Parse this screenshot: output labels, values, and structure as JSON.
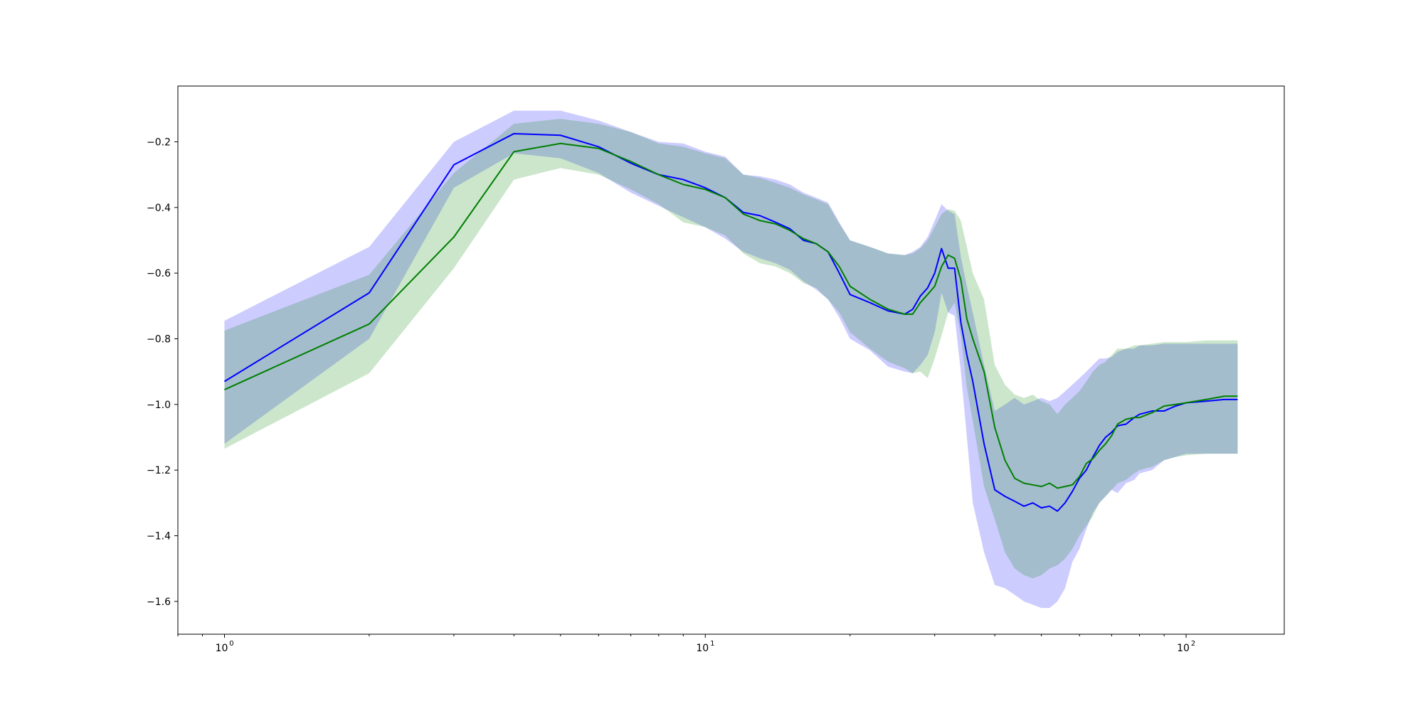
{
  "chart_data": {
    "type": "line",
    "title": "",
    "xlabel": "",
    "ylabel": "",
    "xscale": "log",
    "xlim": [
      0.8,
      160
    ],
    "ylim": [
      -1.7,
      -0.03
    ],
    "grid": false,
    "legend": "none",
    "x_tick_labels": [
      {
        "value": 1,
        "base": "10",
        "exp": "0"
      },
      {
        "value": 10,
        "base": "10",
        "exp": "1"
      },
      {
        "value": 100,
        "base": "10",
        "exp": "2"
      }
    ],
    "y_ticks": [
      -0.2,
      -0.4,
      -0.6,
      -0.8,
      -1.0,
      -1.2,
      -1.4,
      -1.6
    ],
    "y_tick_labels": [
      "−0.2",
      "−0.4",
      "−0.6",
      "−0.8",
      "−1.0",
      "−1.2",
      "−1.4",
      "−1.6"
    ],
    "series": [
      {
        "color": "#0000ff",
        "band_color": "#0000ff",
        "band_opacity": 0.2,
        "x": [
          1,
          2,
          3,
          4,
          5,
          6,
          7,
          8,
          9,
          10,
          11,
          12,
          13,
          14,
          15,
          16,
          17,
          18,
          19,
          20,
          22,
          24,
          26,
          27,
          28,
          29,
          30,
          31,
          32,
          33,
          34,
          35,
          36,
          38,
          40,
          42,
          44,
          46,
          48,
          50,
          52,
          54,
          56,
          58,
          60,
          62,
          64,
          66,
          68,
          70,
          72,
          75,
          78,
          80,
          85,
          90,
          95,
          100,
          110,
          120,
          128
        ],
        "mean": [
          -0.93,
          -0.66,
          -0.27,
          -0.175,
          -0.18,
          -0.215,
          -0.265,
          -0.3,
          -0.315,
          -0.34,
          -0.37,
          -0.415,
          -0.425,
          -0.445,
          -0.465,
          -0.5,
          -0.51,
          -0.535,
          -0.6,
          -0.665,
          -0.69,
          -0.715,
          -0.725,
          -0.71,
          -0.67,
          -0.645,
          -0.6,
          -0.525,
          -0.585,
          -0.585,
          -0.75,
          -0.85,
          -0.93,
          -1.12,
          -1.26,
          -1.28,
          -1.295,
          -1.31,
          -1.3,
          -1.315,
          -1.31,
          -1.325,
          -1.3,
          -1.265,
          -1.225,
          -1.2,
          -1.16,
          -1.125,
          -1.1,
          -1.085,
          -1.065,
          -1.06,
          -1.04,
          -1.03,
          -1.02,
          -1.02,
          -1.005,
          -0.995,
          -0.99,
          -0.985,
          -0.985
        ],
        "upper": [
          -0.745,
          -0.52,
          -0.2,
          -0.105,
          -0.105,
          -0.135,
          -0.17,
          -0.2,
          -0.205,
          -0.23,
          -0.245,
          -0.3,
          -0.305,
          -0.315,
          -0.33,
          -0.355,
          -0.37,
          -0.385,
          -0.445,
          -0.5,
          -0.52,
          -0.54,
          -0.545,
          -0.535,
          -0.52,
          -0.49,
          -0.44,
          -0.39,
          -0.41,
          -0.42,
          -0.55,
          -0.64,
          -0.72,
          -0.88,
          -1.02,
          -1.0,
          -0.98,
          -1.0,
          -0.99,
          -0.98,
          -0.99,
          -0.98,
          -0.96,
          -0.94,
          -0.92,
          -0.9,
          -0.88,
          -0.86,
          -0.86,
          -0.855,
          -0.84,
          -0.83,
          -0.83,
          -0.82,
          -0.82,
          -0.815,
          -0.815,
          -0.815,
          -0.815,
          -0.815,
          -0.815
        ],
        "lower": [
          -1.12,
          -0.8,
          -0.34,
          -0.235,
          -0.25,
          -0.295,
          -0.355,
          -0.395,
          -0.43,
          -0.46,
          -0.495,
          -0.535,
          -0.555,
          -0.57,
          -0.59,
          -0.625,
          -0.65,
          -0.68,
          -0.735,
          -0.8,
          -0.835,
          -0.885,
          -0.9,
          -0.905,
          -0.88,
          -0.85,
          -0.78,
          -0.66,
          -0.72,
          -0.73,
          -0.9,
          -1.1,
          -1.3,
          -1.45,
          -1.55,
          -1.56,
          -1.58,
          -1.6,
          -1.61,
          -1.62,
          -1.62,
          -1.6,
          -1.56,
          -1.48,
          -1.44,
          -1.38,
          -1.33,
          -1.3,
          -1.28,
          -1.26,
          -1.27,
          -1.24,
          -1.23,
          -1.21,
          -1.2,
          -1.17,
          -1.16,
          -1.15,
          -1.15,
          -1.15,
          -1.15
        ]
      },
      {
        "color": "#007f00",
        "band_color": "#008000",
        "band_opacity": 0.2,
        "x": [
          1,
          2,
          3,
          4,
          5,
          6,
          7,
          8,
          9,
          10,
          11,
          12,
          13,
          14,
          15,
          16,
          17,
          18,
          19,
          20,
          22,
          24,
          26,
          27,
          28,
          29,
          30,
          31,
          32,
          33,
          34,
          35,
          36,
          38,
          40,
          42,
          44,
          46,
          48,
          50,
          52,
          54,
          56,
          58,
          60,
          62,
          64,
          66,
          68,
          70,
          72,
          75,
          78,
          80,
          85,
          90,
          95,
          100,
          110,
          120,
          128
        ],
        "mean": [
          -0.955,
          -0.755,
          -0.49,
          -0.23,
          -0.205,
          -0.22,
          -0.26,
          -0.3,
          -0.33,
          -0.345,
          -0.37,
          -0.42,
          -0.44,
          -0.45,
          -0.47,
          -0.495,
          -0.51,
          -0.535,
          -0.58,
          -0.64,
          -0.68,
          -0.71,
          -0.725,
          -0.725,
          -0.69,
          -0.665,
          -0.64,
          -0.58,
          -0.545,
          -0.555,
          -0.62,
          -0.74,
          -0.8,
          -0.9,
          -1.07,
          -1.17,
          -1.225,
          -1.24,
          -1.245,
          -1.25,
          -1.24,
          -1.255,
          -1.25,
          -1.245,
          -1.22,
          -1.18,
          -1.165,
          -1.14,
          -1.12,
          -1.095,
          -1.06,
          -1.045,
          -1.04,
          -1.04,
          -1.025,
          -1.005,
          -1.0,
          -0.995,
          -0.985,
          -0.975,
          -0.975
        ],
        "upper": [
          -0.775,
          -0.605,
          -0.295,
          -0.145,
          -0.13,
          -0.145,
          -0.17,
          -0.205,
          -0.215,
          -0.235,
          -0.25,
          -0.3,
          -0.31,
          -0.325,
          -0.34,
          -0.36,
          -0.375,
          -0.39,
          -0.45,
          -0.5,
          -0.52,
          -0.54,
          -0.545,
          -0.54,
          -0.525,
          -0.5,
          -0.46,
          -0.42,
          -0.405,
          -0.41,
          -0.44,
          -0.52,
          -0.6,
          -0.68,
          -0.88,
          -0.94,
          -0.97,
          -0.98,
          -0.97,
          -0.99,
          -1.0,
          -1.03,
          -1.0,
          -0.98,
          -0.96,
          -0.93,
          -0.9,
          -0.88,
          -0.87,
          -0.85,
          -0.83,
          -0.83,
          -0.82,
          -0.82,
          -0.815,
          -0.81,
          -0.81,
          -0.81,
          -0.805,
          -0.805,
          -0.805
        ],
        "lower": [
          -1.135,
          -0.905,
          -0.585,
          -0.315,
          -0.28,
          -0.3,
          -0.345,
          -0.39,
          -0.445,
          -0.46,
          -0.485,
          -0.54,
          -0.57,
          -0.58,
          -0.6,
          -0.63,
          -0.645,
          -0.68,
          -0.72,
          -0.78,
          -0.83,
          -0.87,
          -0.89,
          -0.905,
          -0.9,
          -0.92,
          -0.86,
          -0.79,
          -0.72,
          -0.69,
          -0.79,
          -0.95,
          -1.05,
          -1.25,
          -1.35,
          -1.45,
          -1.5,
          -1.52,
          -1.53,
          -1.52,
          -1.5,
          -1.49,
          -1.47,
          -1.44,
          -1.4,
          -1.37,
          -1.34,
          -1.3,
          -1.28,
          -1.26,
          -1.24,
          -1.23,
          -1.21,
          -1.2,
          -1.19,
          -1.17,
          -1.16,
          -1.155,
          -1.15,
          -1.15,
          -1.15
        ]
      }
    ]
  }
}
